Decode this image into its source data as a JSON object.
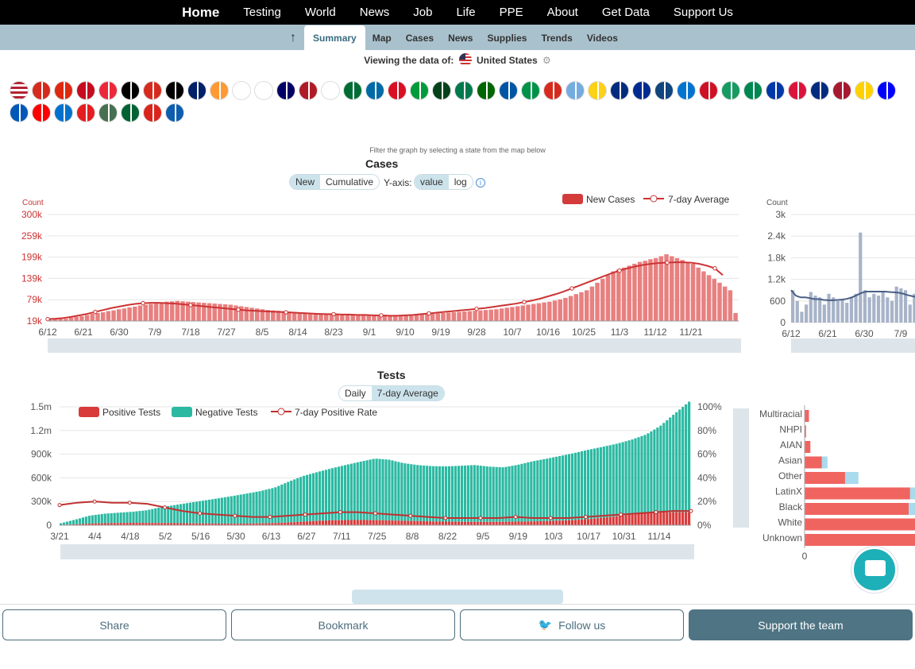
{
  "topnav": {
    "items": [
      "Home",
      "Testing",
      "World",
      "News",
      "Job",
      "Life",
      "PPE",
      "About",
      "Get Data",
      "Support Us"
    ]
  },
  "subnav": {
    "items": [
      "Summary",
      "Map",
      "Cases",
      "News",
      "Supplies",
      "Trends",
      "Videos"
    ],
    "active": "Summary"
  },
  "viewing": {
    "label": "Viewing the data of:",
    "country": "United States"
  },
  "flags": [
    "us-flag",
    "ca-flag",
    "cn-flag",
    "es-flag",
    "at-flag",
    "be-flag",
    "ch-flag",
    "de-flag",
    "gb-flag",
    "in-flag",
    "jp-flag",
    "kr-flag",
    "my-flag",
    "nl-flag",
    "ru-flag",
    "sa-flag",
    "se-flag",
    "pe-flag",
    "br-flag",
    "pk-flag",
    "za-flag",
    "pt-flag",
    "fr-flag",
    "it-flag",
    "bo-flag",
    "ar-flag",
    "co-flag",
    "cr-flag",
    "cu-flag",
    "cz-flag",
    "hn-flag",
    "id-flag",
    "ie-flag",
    "ng-flag",
    "ph-flag",
    "pl-flag",
    "ro-flag",
    "th-flag",
    "ec-flag",
    "si-flag",
    "ua-flag",
    "hr-flag",
    "ee-flag",
    "al-flag",
    "hu-flag",
    "dz-flag",
    "vn-flag",
    "gr-flag"
  ],
  "flag_colors": [
    "#b22234",
    "#d52b1e",
    "#de2910",
    "#c60b1e",
    "#ed2939",
    "#000000",
    "#d52b1e",
    "#000000",
    "#012169",
    "#ff9933",
    "#ffffff",
    "#ffffff",
    "#010066",
    "#ae1c28",
    "#ffffff",
    "#006c35",
    "#006aa7",
    "#d91023",
    "#009b3a",
    "#01411c",
    "#007a4d",
    "#006600",
    "#0055a4",
    "#009246",
    "#d52b1e",
    "#74acdf",
    "#fcd116",
    "#002b7f",
    "#002a8f",
    "#11457e",
    "#0073cf",
    "#ce1126",
    "#169b62",
    "#008751",
    "#0038a8",
    "#dc143c",
    "#002b7f",
    "#a51931",
    "#ffd100",
    "#0000ff",
    "#0057b7",
    "#ff0000",
    "#0072ce",
    "#e41e20",
    "#477050",
    "#006233",
    "#da251d",
    "#0d5eaf"
  ],
  "hint": "Filter the graph by selecting a state from the map below",
  "cases": {
    "title": "Cases",
    "mode_toggle": [
      "New",
      "Cumulative"
    ],
    "mode_active": "New",
    "yaxis_label": "Y-axis:",
    "scale_toggle": [
      "value",
      "log"
    ],
    "scale_active": "value",
    "legend": [
      "New Cases",
      "7-day Average"
    ],
    "count_label": "Count",
    "colors": {
      "bar": "#e88080",
      "line": "#cc3333",
      "axis": "#cc3333"
    }
  },
  "tests": {
    "title": "Tests",
    "toggle": [
      "Daily",
      "7-day Average"
    ],
    "active": "7-day Average",
    "legend": [
      "Positive Tests",
      "Negative Tests",
      "7-day Positive Rate"
    ],
    "colors": {
      "positive": "#d93a3a",
      "negative": "#2bb9a2",
      "rate": "#c03030"
    }
  },
  "side_cases": {
    "count_label": "Count"
  },
  "race": {
    "categories": [
      "Multiracial",
      "NHPI",
      "AIAN",
      "Asian",
      "Other",
      "LatinX",
      "Black",
      "White",
      "Unknown"
    ]
  },
  "bottom": {
    "share": "Share",
    "bookmark": "Bookmark",
    "follow": "Follow us",
    "support": "Support the team"
  },
  "chart_data": [
    {
      "type": "bar",
      "title": "Cases",
      "ylabel": "Count",
      "yticks": [
        "19k",
        "79k",
        "139k",
        "199k",
        "259k",
        "300k"
      ],
      "xticks": [
        "6/12",
        "6/21",
        "6/30",
        "7/9",
        "7/18",
        "7/27",
        "8/5",
        "8/14",
        "8/23",
        "9/1",
        "9/10",
        "9/19",
        "9/28",
        "10/7",
        "10/16",
        "10/25",
        "11/3",
        "11/12",
        "11/21"
      ],
      "ylim": [
        19000,
        300000
      ],
      "series": [
        {
          "name": "New Cases",
          "values": [
            22000,
            24000,
            26000,
            25000,
            28000,
            30000,
            32000,
            35000,
            38000,
            40000,
            42000,
            45000,
            47000,
            50000,
            52000,
            55000,
            57000,
            60000,
            62000,
            64000,
            66000,
            68000,
            70000,
            71000,
            72000,
            71000,
            70000,
            69000,
            68000,
            67000,
            66000,
            65000,
            64000,
            63000,
            62000,
            60000,
            58000,
            56000,
            54000,
            52000,
            50000,
            48000,
            47000,
            46000,
            45000,
            44000,
            43000,
            42000,
            41000,
            40000,
            40000,
            39000,
            39000,
            38000,
            38000,
            37000,
            37000,
            36000,
            36000,
            35000,
            35000,
            34000,
            34000,
            33000,
            33000,
            32000,
            32000,
            33000,
            34000,
            35000,
            36000,
            37000,
            38000,
            39000,
            40000,
            41000,
            42000,
            43000,
            44000,
            45000,
            46000,
            47000,
            48000,
            49000,
            50000,
            52000,
            54000,
            56000,
            58000,
            60000,
            62000,
            64000,
            66000,
            68000,
            70000,
            73000,
            76000,
            80000,
            85000,
            90000,
            95000,
            100000,
            110000,
            120000,
            130000,
            140000,
            150000,
            155000,
            160000,
            165000,
            170000,
            175000,
            178000,
            182000,
            185000,
            190000,
            195000,
            190000,
            185000,
            180000,
            175000,
            170000,
            160000,
            150000,
            140000,
            130000,
            120000,
            110000,
            100000,
            40000
          ]
        },
        {
          "name": "7-day Average",
          "values": [
            24000,
            25000,
            27000,
            30000,
            34000,
            38000,
            43000,
            48000,
            53000,
            57000,
            61000,
            64000,
            66000,
            67000,
            67000,
            66000,
            65000,
            63000,
            61000,
            59000,
            57000,
            55000,
            53000,
            51000,
            49000,
            47000,
            46000,
            45000,
            44000,
            43000,
            42000,
            41000,
            40000,
            39000,
            38000,
            37000,
            37000,
            36000,
            36000,
            35000,
            35000,
            34000,
            34000,
            33000,
            33000,
            34000,
            35000,
            37000,
            39000,
            41000,
            43000,
            45000,
            47000,
            49000,
            51000,
            53000,
            56000,
            59000,
            62000,
            65000,
            69000,
            73000,
            78000,
            84000,
            90000,
            97000,
            105000,
            113000,
            121000,
            129000,
            137000,
            145000,
            152000,
            158000,
            163000,
            167000,
            170000,
            172000,
            173000,
            174000,
            174000,
            173000,
            170000,
            165000,
            158000,
            140000
          ]
        }
      ]
    },
    {
      "type": "bar",
      "title": "Tests",
      "yticks": [
        "0",
        "300k",
        "600k",
        "900k",
        "1.2m",
        "1.5m"
      ],
      "y2ticks": [
        "0%",
        "20%",
        "40%",
        "60%",
        "80%",
        "100%"
      ],
      "xticks": [
        "3/21",
        "4/4",
        "4/18",
        "5/2",
        "5/16",
        "5/30",
        "6/13",
        "6/27",
        "7/11",
        "7/25",
        "8/8",
        "8/22",
        "9/5",
        "9/19",
        "10/3",
        "10/17",
        "10/31",
        "11/14"
      ],
      "ylim": [
        0,
        1500000
      ],
      "series": [
        {
          "name": "Positive Tests",
          "values": [
            5000,
            10000,
            20000,
            25000,
            28000,
            30000,
            29000,
            28000,
            26000,
            24000,
            22000,
            20000,
            19000,
            20000,
            23000,
            28000,
            35000,
            45000,
            55000,
            62000,
            65000,
            66000,
            64000,
            60000,
            56000,
            52000,
            48000,
            45000,
            43000,
            42000,
            42000,
            43000,
            45000,
            48000,
            52000,
            58000,
            66000,
            78000,
            95000,
            115000,
            135000,
            150000,
            160000,
            165000,
            165000
          ]
        },
        {
          "name": "Negative Tests",
          "values": [
            20000,
            60000,
            100000,
            120000,
            130000,
            140000,
            160000,
            200000,
            230000,
            260000,
            290000,
            320000,
            350000,
            380000,
            410000,
            450000,
            520000,
            580000,
            620000,
            660000,
            700000,
            740000,
            780000,
            770000,
            730000,
            710000,
            700000,
            700000,
            710000,
            720000,
            700000,
            690000,
            720000,
            760000,
            790000,
            820000,
            850000,
            880000,
            900000,
            920000,
            950000,
            1000000,
            1100000,
            1250000,
            1400000
          ]
        },
        {
          "name": "7-day Positive Rate",
          "values": [
            17,
            19,
            20,
            19,
            19,
            18,
            15,
            12,
            10,
            9,
            8,
            7,
            7,
            8,
            9,
            10,
            11,
            11,
            10,
            9,
            8,
            7,
            6,
            6,
            6,
            6,
            7,
            6,
            6,
            6,
            7,
            8,
            9,
            10,
            11,
            12,
            12
          ]
        }
      ],
      "y2lim": [
        0,
        100
      ]
    },
    {
      "type": "bar",
      "title": "",
      "ylabel": "Count",
      "yticks": [
        "0",
        "600",
        "1.2k",
        "1.8k",
        "2.4k",
        "3k"
      ],
      "xticks": [
        "6/12",
        "6/21",
        "6/30",
        "7/9"
      ],
      "ylim": [
        0,
        3000
      ],
      "series": [
        {
          "name": "",
          "values": [
            900,
            600,
            300,
            500,
            850,
            750,
            700,
            500,
            800,
            700,
            600,
            650,
            550,
            700,
            800,
            2500,
            900,
            700,
            800,
            750,
            850,
            700,
            600,
            1000,
            950,
            900,
            500,
            800
          ]
        },
        {
          "name": "",
          "values": [
            900,
            750,
            700,
            700,
            680,
            650,
            650,
            630,
            620,
            620,
            630,
            640,
            660,
            700,
            760,
            820,
            860,
            860,
            860,
            860,
            860,
            850,
            840,
            830,
            800,
            760,
            730,
            700
          ]
        }
      ]
    },
    {
      "type": "bar",
      "title": "",
      "categories": [
        "Multiracial",
        "NHPI",
        "AIAN",
        "Asian",
        "Other",
        "LatinX",
        "Black",
        "White",
        "Unknown"
      ],
      "series": [
        {
          "name": "",
          "values": [
            3,
            1,
            4,
            12,
            28,
            73,
            72,
            90,
            90
          ]
        },
        {
          "name": "",
          "values": [
            0,
            0,
            0,
            5,
            12,
            20,
            25,
            0,
            0
          ]
        }
      ]
    }
  ]
}
